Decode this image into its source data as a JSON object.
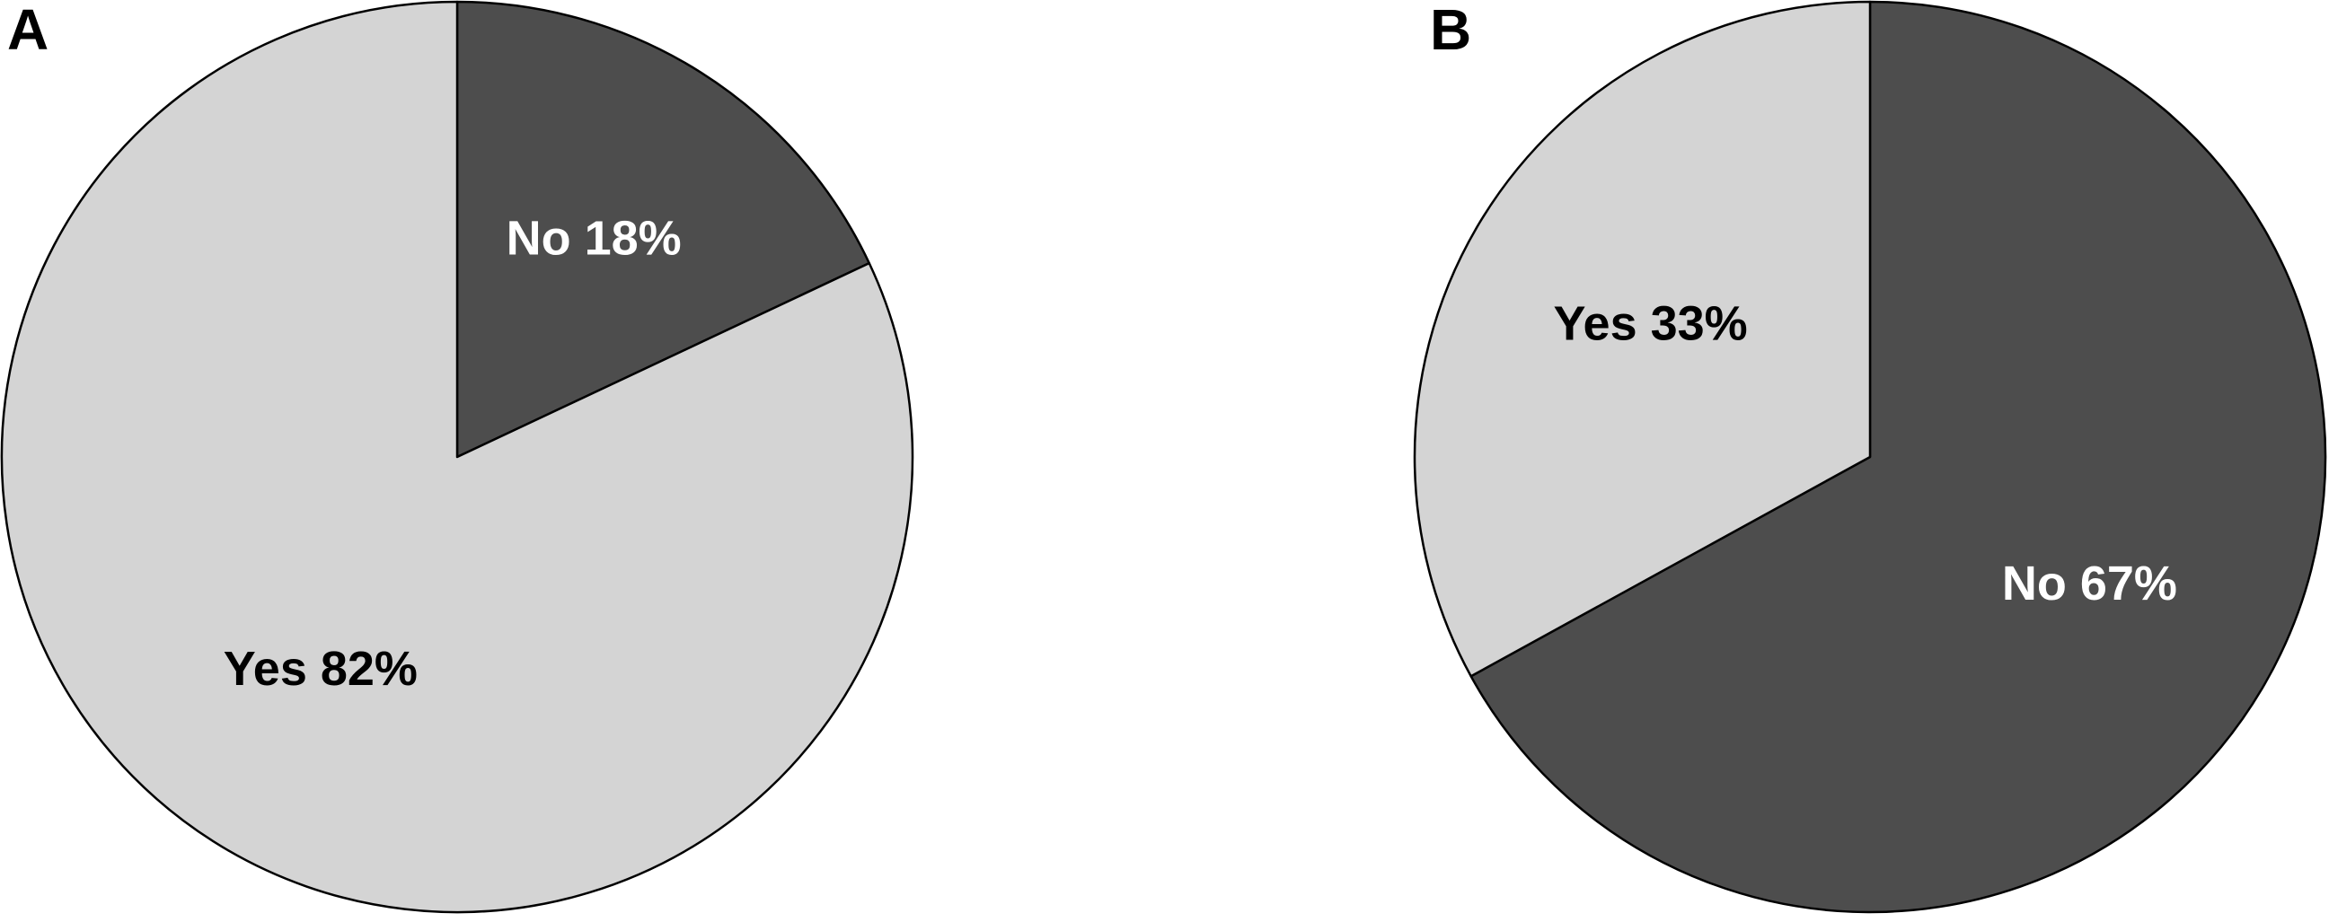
{
  "chart_data": [
    {
      "type": "pie",
      "title": "A",
      "values": [
        18,
        82
      ],
      "value_labels": [
        "No 18%",
        "Yes 82%"
      ],
      "colors": [
        "#4d4d4d",
        "#d4d4d4"
      ]
    },
    {
      "type": "pie",
      "title": "B",
      "values": [
        67,
        33
      ],
      "value_labels": [
        "No 67%",
        "Yes 33%"
      ],
      "colors": [
        "#4d4d4d",
        "#d4d4d4"
      ]
    }
  ]
}
